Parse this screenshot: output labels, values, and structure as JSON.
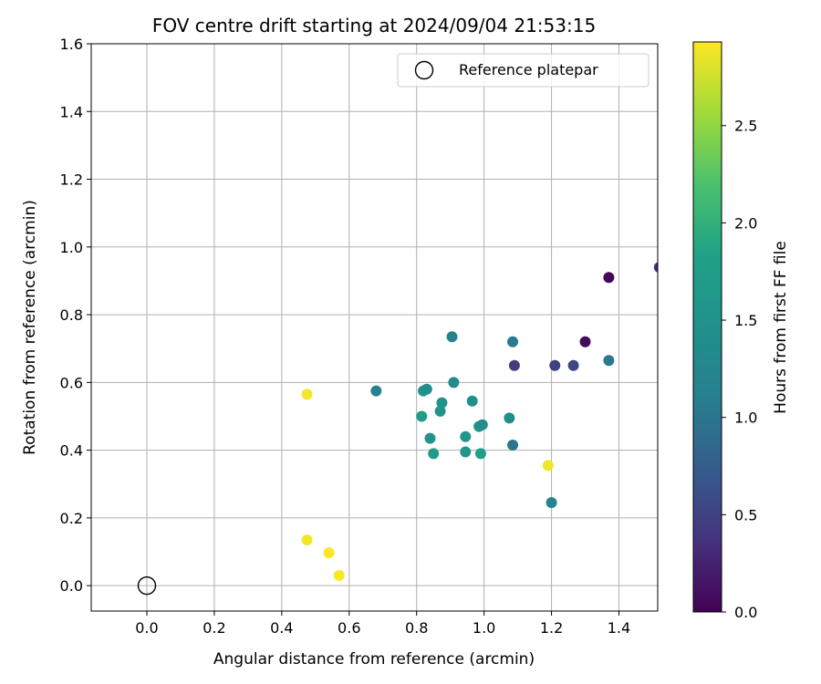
{
  "chart_data": {
    "type": "scatter",
    "title": "FOV centre drift starting at 2024/09/04 21:53:15",
    "xlabel": "Angular distance from reference (arcmin)",
    "ylabel": "Rotation from reference (arcmin)",
    "xlim": [
      -0.165,
      1.515
    ],
    "ylim": [
      -0.075,
      1.6
    ],
    "x_ticks": [
      "0.0",
      "0.2",
      "0.4",
      "0.6",
      "0.8",
      "1.0",
      "1.2",
      "1.4"
    ],
    "y_ticks": [
      "0.0",
      "0.2",
      "0.4",
      "0.6",
      "0.8",
      "1.0",
      "1.2",
      "1.4",
      "1.6"
    ],
    "grid": true,
    "legend": {
      "position": "top-right",
      "label": "Reference platepar"
    },
    "reference_point": {
      "x": 0.0,
      "y": 0.0
    },
    "colorbar": {
      "label": "Hours from first FF file",
      "range": [
        0.0,
        2.93
      ],
      "ticks": [
        "0.0",
        "0.5",
        "1.0",
        "1.5",
        "2.0",
        "2.5"
      ],
      "colormap": "viridis"
    },
    "points": [
      {
        "x": 1.52,
        "y": 0.94,
        "c": 0.3
      },
      {
        "x": 1.37,
        "y": 0.91,
        "c": 0.05
      },
      {
        "x": 1.3,
        "y": 0.72,
        "c": 0.08
      },
      {
        "x": 1.09,
        "y": 0.65,
        "c": 0.45
      },
      {
        "x": 1.21,
        "y": 0.65,
        "c": 0.5
      },
      {
        "x": 1.265,
        "y": 0.65,
        "c": 0.55
      },
      {
        "x": 1.37,
        "y": 0.665,
        "c": 1.05
      },
      {
        "x": 1.085,
        "y": 0.72,
        "c": 1.05
      },
      {
        "x": 0.905,
        "y": 0.735,
        "c": 1.15
      },
      {
        "x": 0.68,
        "y": 0.575,
        "c": 1.15
      },
      {
        "x": 1.085,
        "y": 0.415,
        "c": 1.0
      },
      {
        "x": 1.2,
        "y": 0.245,
        "c": 1.2
      },
      {
        "x": 0.91,
        "y": 0.6,
        "c": 1.35
      },
      {
        "x": 0.82,
        "y": 0.575,
        "c": 1.55
      },
      {
        "x": 0.83,
        "y": 0.58,
        "c": 1.45
      },
      {
        "x": 0.875,
        "y": 0.54,
        "c": 1.5
      },
      {
        "x": 0.87,
        "y": 0.515,
        "c": 1.55
      },
      {
        "x": 0.965,
        "y": 0.545,
        "c": 1.45
      },
      {
        "x": 0.815,
        "y": 0.5,
        "c": 1.75
      },
      {
        "x": 1.075,
        "y": 0.495,
        "c": 1.4
      },
      {
        "x": 0.985,
        "y": 0.47,
        "c": 1.5
      },
      {
        "x": 0.995,
        "y": 0.475,
        "c": 1.4
      },
      {
        "x": 0.84,
        "y": 0.435,
        "c": 1.55
      },
      {
        "x": 0.945,
        "y": 0.44,
        "c": 1.6
      },
      {
        "x": 0.85,
        "y": 0.39,
        "c": 1.7
      },
      {
        "x": 0.945,
        "y": 0.395,
        "c": 1.6
      },
      {
        "x": 0.99,
        "y": 0.39,
        "c": 1.8
      },
      {
        "x": 0.475,
        "y": 0.565,
        "c": 2.9
      },
      {
        "x": 1.19,
        "y": 0.355,
        "c": 2.88
      },
      {
        "x": 0.475,
        "y": 0.135,
        "c": 2.9
      },
      {
        "x": 0.54,
        "y": 0.097,
        "c": 2.92
      },
      {
        "x": 0.57,
        "y": 0.03,
        "c": 2.92
      }
    ]
  }
}
